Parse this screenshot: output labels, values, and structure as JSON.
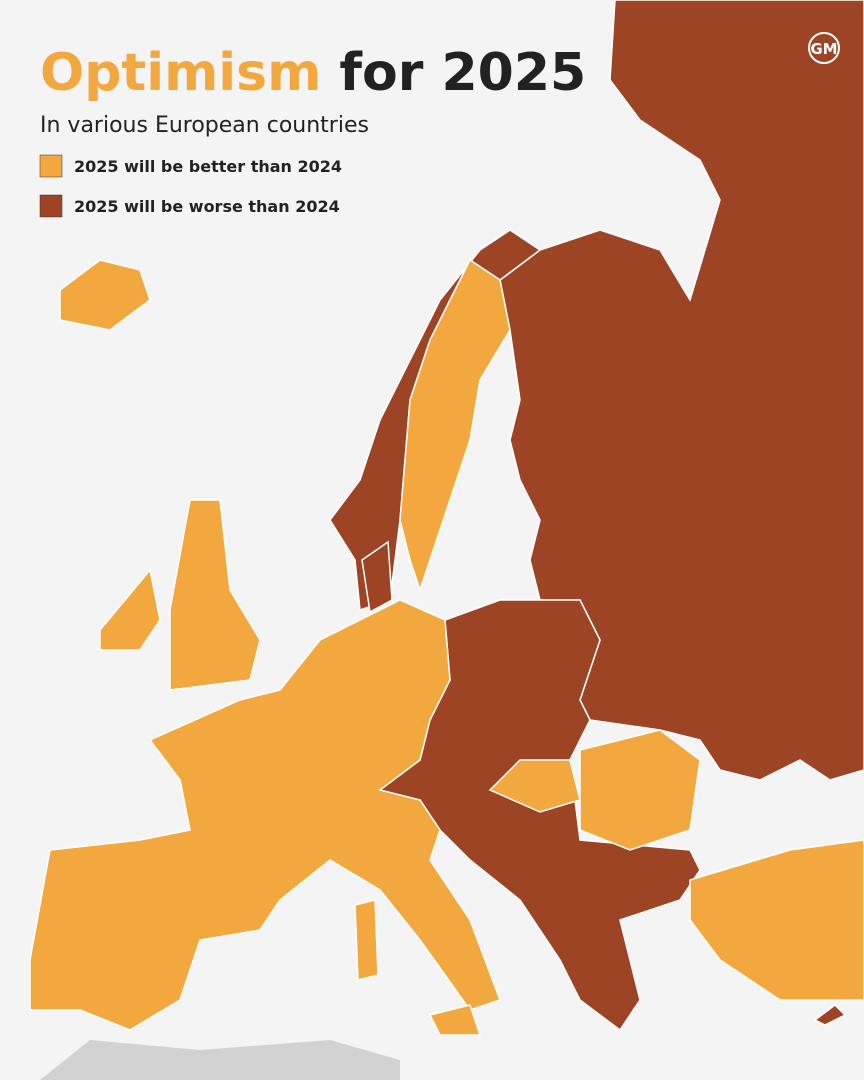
{
  "title": {
    "highlight": "Optimism",
    "rest": "for 2025"
  },
  "subtitle": "In various European countries",
  "legend": [
    {
      "label": "2025 will be better than 2024",
      "color": "#f2a83e"
    },
    {
      "label": "2025 will be worse than 2024",
      "color": "#9c4424"
    }
  ],
  "logo": "GM"
}
